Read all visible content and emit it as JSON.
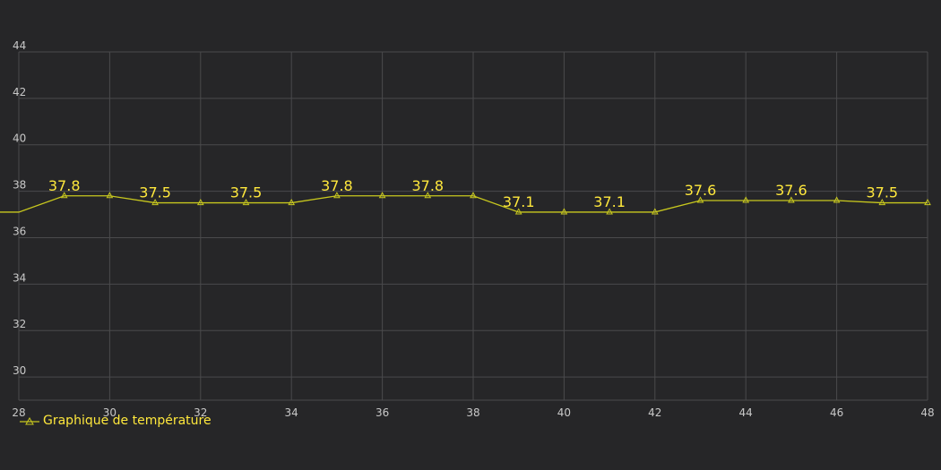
{
  "colors": {
    "background": "#262628",
    "grid": "#4a4a4c",
    "axis_text": "#c8c8c8",
    "series": "#c8c81e",
    "data_label": "#ffe83c"
  },
  "chart_data": {
    "type": "line",
    "title": "",
    "xlabel": "",
    "ylabel": "",
    "xlim": [
      28,
      48
    ],
    "ylim": [
      29,
      44
    ],
    "x_ticks": [
      28,
      30,
      32,
      34,
      36,
      38,
      40,
      42,
      44,
      46,
      48
    ],
    "y_ticks": [
      30,
      32,
      34,
      36,
      38,
      40,
      42,
      44
    ],
    "grid": true,
    "legend_position": "bottom-left",
    "marker": "triangle-icon",
    "series": [
      {
        "name": "Graphique de température",
        "x": [
          28,
          29,
          30,
          31,
          32,
          33,
          34,
          35,
          36,
          37,
          38,
          39,
          40,
          41,
          42,
          43,
          44,
          45,
          46,
          47,
          48
        ],
        "y": [
          37.1,
          37.8,
          37.8,
          37.5,
          37.5,
          37.5,
          37.5,
          37.8,
          37.8,
          37.8,
          37.8,
          37.1,
          37.1,
          37.1,
          37.1,
          37.6,
          37.6,
          37.6,
          37.6,
          37.5,
          37.5
        ],
        "labeled_points": [
          {
            "x": 29,
            "label": "37.8"
          },
          {
            "x": 31,
            "label": "37.5"
          },
          {
            "x": 33,
            "label": "37.5"
          },
          {
            "x": 35,
            "label": "37.8"
          },
          {
            "x": 37,
            "label": "37.8"
          },
          {
            "x": 39,
            "label": "37.1"
          },
          {
            "x": 41,
            "label": "37.1"
          },
          {
            "x": 43,
            "label": "37.6"
          },
          {
            "x": 45,
            "label": "37.6"
          },
          {
            "x": 47,
            "label": "37.5"
          }
        ]
      }
    ]
  }
}
